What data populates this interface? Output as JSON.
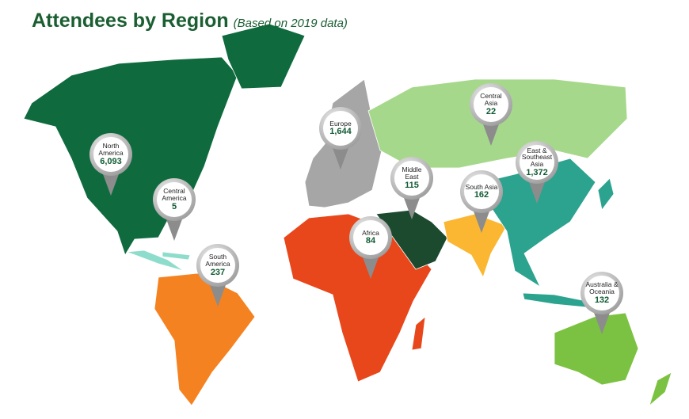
{
  "header": {
    "title": "Attendees by Region",
    "subtitle": "(Based on 2019 data)"
  },
  "regions": [
    {
      "name": "North America",
      "value": "6,093"
    },
    {
      "name": "Central America",
      "value": "5"
    },
    {
      "name": "South America",
      "value": "237"
    },
    {
      "name": "Europe",
      "value": "1,644"
    },
    {
      "name": "Africa",
      "value": "84"
    },
    {
      "name": "Middle East",
      "value": "115"
    },
    {
      "name": "South Asia",
      "value": "162"
    },
    {
      "name": "Central Asia",
      "value": "22"
    },
    {
      "name": "East & Southeast Asia",
      "value": "1,372"
    },
    {
      "name": "Australia & Oceania",
      "value": "132"
    }
  ]
}
